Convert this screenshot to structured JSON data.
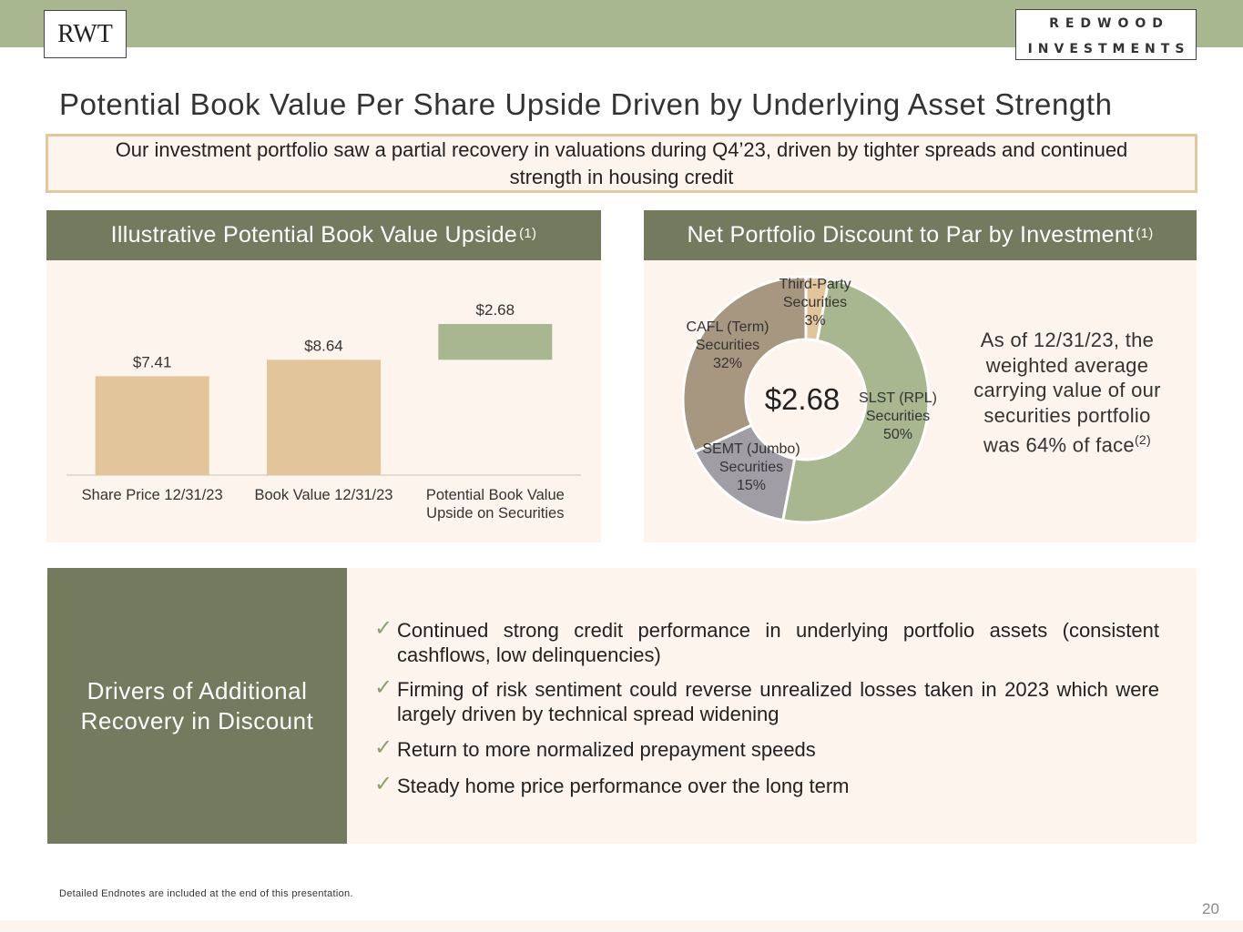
{
  "header": {
    "left_logo": "RWT",
    "right_logo_line1": "REDWOOD",
    "right_logo_line2": "INVESTMENTS"
  },
  "title": "Potential Book Value Per Share Upside Driven by Underlying Asset Strength",
  "summary": "Our investment portfolio saw a partial recovery in valuations during Q4’23, driven by tighter spreads and continued strength in housing credit",
  "left_panel": {
    "heading": "Illustrative Potential Book Value Upside",
    "heading_sup": "(1)"
  },
  "right_panel": {
    "heading": "Net Portfolio Discount to Par by Investment",
    "heading_sup": "(1)",
    "note": "As of 12/31/23, the weighted average carrying value of our securities portfolio was 64% of face",
    "note_sup": "(2)"
  },
  "chart_data": [
    {
      "type": "bar",
      "subtype": "waterfall",
      "categories": [
        "Share Price 12/31/23",
        "Book Value 12/31/23",
        "Potential Book Value Upside on Securities"
      ],
      "values": [
        7.41,
        8.64,
        2.68
      ],
      "bases": [
        0,
        0,
        8.64
      ],
      "labels": [
        "$7.41",
        "$8.64",
        "$2.68"
      ],
      "colors": [
        "#e3c59c",
        "#e3c59c",
        "#a8b78f"
      ],
      "ylim": [
        0,
        12
      ],
      "grid": false
    },
    {
      "type": "pie",
      "subtype": "donut",
      "center_label": "$2.68",
      "slices": [
        {
          "label_lines": [
            "Third-Party",
            "Securities",
            "3%"
          ],
          "value": 3,
          "color": "#e3c59c"
        },
        {
          "label_lines": [
            "SLST (RPL)",
            "Securities",
            "50%"
          ],
          "value": 50,
          "color": "#a8b78f"
        },
        {
          "label_lines": [
            "SEMT (Jumbo)",
            "Securities",
            "15%"
          ],
          "value": 15,
          "color": "#a09ea4"
        },
        {
          "label_lines": [
            "CAFL (Term)",
            "Securities",
            "32%"
          ],
          "value": 32,
          "color": "#a89780"
        }
      ]
    }
  ],
  "drivers": {
    "heading": "Drivers of Additional Recovery in Discount",
    "check": "✓",
    "items": [
      "Continued strong credit performance in underlying portfolio assets (consistent cashflows, low delinquencies)",
      "Firming of risk sentiment could reverse unrealized losses taken in 2023 which were largely driven by technical spread widening",
      "Return to more normalized prepayment speeds",
      "Steady home price performance over the long term"
    ]
  },
  "footnote": "Detailed Endnotes are included at the end of this presentation.",
  "page_number": "20"
}
